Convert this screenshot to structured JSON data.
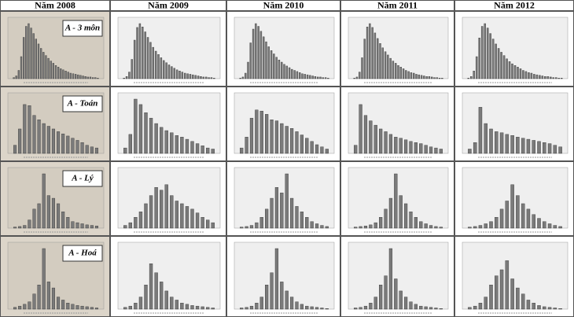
{
  "table": {
    "columns": [
      "Năm 2008",
      "Năm 2009",
      "Năm 2010",
      "Năm 2011",
      "Năm 2012"
    ],
    "rows": [
      {
        "label": "A - 3 môn",
        "charts": [
          {
            "type": "bar",
            "ylim": [
              0,
              100
            ],
            "values": [
              2,
              5,
              15,
              40,
              75,
              95,
              100,
              92,
              82,
              72,
              63,
              55,
              48,
              42,
              37,
              32,
              28,
              24,
              21,
              18,
              16,
              14,
              12,
              10,
              9,
              8,
              7,
              6,
              5,
              4,
              3,
              3,
              2,
              2,
              1
            ]
          },
          {
            "type": "bar",
            "ylim": [
              0,
              100
            ],
            "values": [
              1,
              4,
              12,
              35,
              70,
              93,
              100,
              94,
              85,
              75,
              66,
              57,
              50,
              44,
              38,
              33,
              29,
              25,
              22,
              19,
              16,
              14,
              12,
              10,
              9,
              8,
              7,
              6,
              5,
              4,
              3,
              3,
              2,
              2,
              1
            ]
          },
          {
            "type": "bar",
            "ylim": [
              0,
              100
            ],
            "values": [
              1,
              3,
              10,
              30,
              65,
              90,
              100,
              95,
              86,
              76,
              67,
              58,
              51,
              45,
              39,
              34,
              30,
              26,
              23,
              20,
              17,
              15,
              13,
              11,
              9,
              8,
              7,
              6,
              5,
              4,
              3,
              3,
              2,
              2,
              1
            ]
          },
          {
            "type": "bar",
            "ylim": [
              0,
              100
            ],
            "values": [
              1,
              3,
              12,
              38,
              72,
              94,
              100,
              93,
              83,
              73,
              64,
              56,
              49,
              43,
              37,
              32,
              28,
              24,
              21,
              18,
              15,
              13,
              11,
              10,
              8,
              7,
              6,
              5,
              4,
              4,
              3,
              2,
              2,
              1,
              1
            ]
          },
          {
            "type": "bar",
            "ylim": [
              0,
              100
            ],
            "values": [
              1,
              4,
              14,
              40,
              74,
              95,
              100,
              92,
              82,
              72,
              63,
              55,
              48,
              42,
              36,
              31,
              27,
              24,
              21,
              18,
              15,
              13,
              11,
              10,
              8,
              7,
              6,
              5,
              4,
              4,
              3,
              2,
              2,
              1,
              1
            ]
          }
        ]
      },
      {
        "label": "A - Toán",
        "charts": [
          {
            "type": "bar",
            "ylim": [
              0,
              100
            ],
            "values": [
              15,
              45,
              90,
              88,
              70,
              62,
              55,
              50,
              45,
              40,
              36,
              32,
              28,
              24,
              20,
              15,
              12,
              10
            ]
          },
          {
            "type": "bar",
            "ylim": [
              0,
              100
            ],
            "values": [
              10,
              35,
              100,
              90,
              75,
              65,
              55,
              48,
              42,
              38,
              33,
              30,
              26,
              22,
              18,
              14,
              10,
              8
            ]
          },
          {
            "type": "bar",
            "ylim": [
              0,
              100
            ],
            "values": [
              10,
              30,
              65,
              80,
              78,
              72,
              62,
              60,
              55,
              50,
              46,
              40,
              34,
              28,
              22,
              16,
              12,
              8
            ]
          },
          {
            "type": "bar",
            "ylim": [
              0,
              100
            ],
            "values": [
              15,
              90,
              70,
              60,
              52,
              45,
              40,
              35,
              30,
              28,
              25,
              22,
              20,
              18,
              15,
              12,
              10,
              8
            ]
          },
          {
            "type": "bar",
            "ylim": [
              0,
              100
            ],
            "values": [
              8,
              20,
              85,
              55,
              45,
              40,
              38,
              35,
              33,
              30,
              28,
              26,
              24,
              22,
              20,
              18,
              15,
              12
            ]
          }
        ]
      },
      {
        "label": "A - Lý",
        "charts": [
          {
            "type": "bar",
            "ylim": [
              0,
              100
            ],
            "values": [
              2,
              3,
              5,
              15,
              35,
              45,
              100,
              60,
              55,
              45,
              30,
              20,
              12,
              10,
              8,
              6,
              5,
              4
            ]
          },
          {
            "type": "bar",
            "ylim": [
              0,
              100
            ],
            "values": [
              5,
              10,
              20,
              30,
              45,
              60,
              75,
              70,
              80,
              60,
              50,
              45,
              40,
              35,
              28,
              20,
              15,
              10
            ]
          },
          {
            "type": "bar",
            "ylim": [
              0,
              100
            ],
            "values": [
              2,
              3,
              5,
              10,
              20,
              35,
              55,
              75,
              65,
              100,
              55,
              40,
              30,
              20,
              12,
              8,
              5,
              3
            ]
          },
          {
            "type": "bar",
            "ylim": [
              0,
              100
            ],
            "values": [
              2,
              3,
              4,
              6,
              10,
              20,
              35,
              55,
              100,
              60,
              45,
              30,
              20,
              12,
              8,
              5,
              3,
              2
            ]
          },
          {
            "type": "bar",
            "ylim": [
              0,
              100
            ],
            "values": [
              2,
              3,
              5,
              8,
              12,
              20,
              35,
              50,
              80,
              60,
              45,
              35,
              25,
              18,
              12,
              8,
              5,
              3
            ]
          }
        ]
      },
      {
        "label": "A - Hoá",
        "charts": [
          {
            "type": "bar",
            "ylim": [
              0,
              100
            ],
            "values": [
              3,
              5,
              8,
              12,
              25,
              40,
              100,
              45,
              35,
              20,
              15,
              10,
              8,
              6,
              5,
              4,
              3,
              2
            ]
          },
          {
            "type": "bar",
            "ylim": [
              0,
              100
            ],
            "values": [
              3,
              5,
              10,
              20,
              40,
              75,
              60,
              45,
              30,
              20,
              15,
              10,
              8,
              6,
              5,
              4,
              3,
              2
            ]
          },
          {
            "type": "bar",
            "ylim": [
              0,
              100
            ],
            "values": [
              2,
              3,
              5,
              10,
              20,
              40,
              60,
              100,
              45,
              30,
              20,
              12,
              8,
              5,
              4,
              3,
              2,
              1
            ]
          },
          {
            "type": "bar",
            "ylim": [
              0,
              100
            ],
            "values": [
              2,
              3,
              5,
              10,
              20,
              40,
              55,
              100,
              50,
              30,
              20,
              12,
              8,
              5,
              4,
              3,
              2,
              1
            ]
          },
          {
            "type": "bar",
            "ylim": [
              0,
              100
            ],
            "values": [
              3,
              5,
              10,
              20,
              40,
              55,
              65,
              80,
              50,
              35,
              25,
              15,
              10,
              6,
              4,
              3,
              2,
              1
            ]
          }
        ]
      }
    ]
  }
}
